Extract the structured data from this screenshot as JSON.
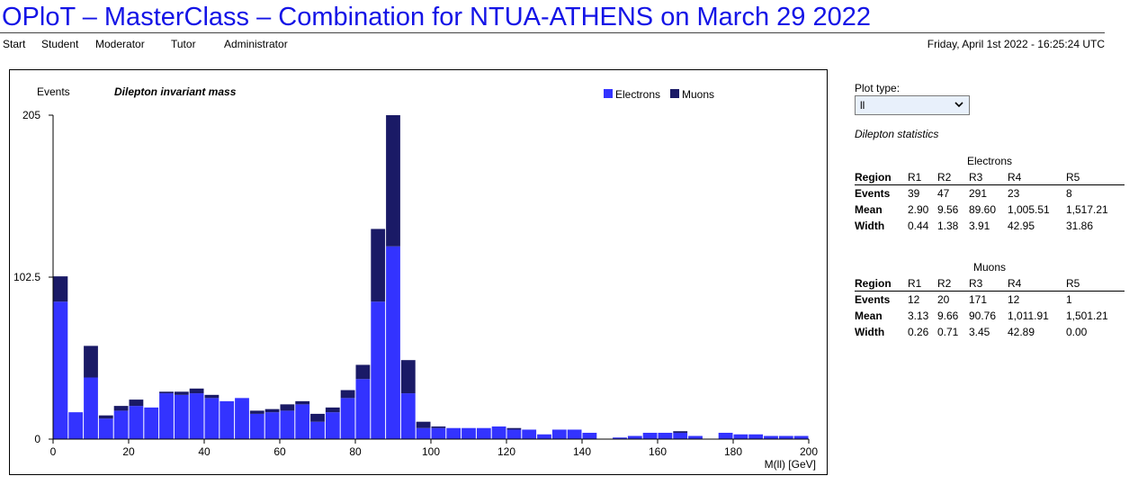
{
  "page_title": "OPloT – MasterClass – Combination for NTUA-ATHENS on March 29 2022",
  "nav": [
    "Start",
    "Student",
    "Moderator",
    "Tutor",
    "Administrator"
  ],
  "timestamp": "Friday, April 1st 2022 - 16:25:24 UTC",
  "plot_type": {
    "label": "Plot type:",
    "selected": "ll"
  },
  "stats_title": "Dilepton statistics",
  "colors": {
    "electrons": "#3333ff",
    "muons": "#1a1a66",
    "title": "#1414e6"
  },
  "electrons_table": {
    "caption": "Electrons",
    "header": [
      "Region",
      "R1",
      "R2",
      "R3",
      "R4",
      "R5"
    ],
    "rows": [
      [
        "Events",
        "39",
        "47",
        "291",
        "23",
        "8"
      ],
      [
        "Mean",
        "2.90",
        "9.56",
        "89.60",
        "1,005.51",
        "1,517.21"
      ],
      [
        "Width",
        "0.44",
        "1.38",
        "3.91",
        "42.95",
        "31.86"
      ]
    ]
  },
  "muons_table": {
    "caption": "Muons",
    "header": [
      "Region",
      "R1",
      "R2",
      "R3",
      "R4",
      "R5"
    ],
    "rows": [
      [
        "Events",
        "12",
        "20",
        "171",
        "12",
        "1"
      ],
      [
        "Mean",
        "3.13",
        "9.66",
        "90.76",
        "1,011.91",
        "1,501.21"
      ],
      [
        "Width",
        "0.26",
        "0.71",
        "3.45",
        "42.89",
        "0.00"
      ]
    ]
  },
  "chart_data": {
    "type": "bar",
    "stacked": true,
    "title": "Dilepton invariant mass",
    "ylabel": "Events",
    "xlabel": "M(ll) [GeV]",
    "xlim": [
      0,
      200
    ],
    "ylim": [
      0,
      205
    ],
    "xticks": [
      "0",
      "20",
      "40",
      "60",
      "80",
      "100",
      "120",
      "140",
      "160",
      "180",
      "200"
    ],
    "yticks": [
      "0",
      "102.5",
      "205"
    ],
    "legend_position": "top-right",
    "bin_width": 4,
    "x": [
      0,
      4,
      8,
      12,
      16,
      20,
      24,
      28,
      32,
      36,
      40,
      44,
      48,
      52,
      56,
      60,
      64,
      68,
      72,
      76,
      80,
      84,
      88,
      92,
      96,
      100,
      104,
      108,
      112,
      116,
      120,
      124,
      128,
      132,
      136,
      140,
      144,
      148,
      152,
      156,
      160,
      164,
      168,
      172,
      176,
      180,
      184,
      188,
      192,
      196
    ],
    "series": [
      {
        "name": "Electrons",
        "values": [
          87,
          17,
          39,
          13,
          18,
          21,
          20,
          29,
          28,
          29,
          26,
          24,
          26,
          16,
          17,
          18,
          22,
          11,
          17,
          26,
          38,
          87,
          122,
          29,
          7,
          7,
          7,
          7,
          7,
          8,
          6,
          6,
          3,
          6,
          6,
          4,
          0,
          1,
          2,
          4,
          4,
          4,
          2,
          0,
          4,
          3,
          3,
          2,
          2,
          2
        ]
      },
      {
        "name": "Muons",
        "values": [
          16,
          0,
          20,
          2,
          3,
          4,
          0,
          1,
          2,
          3,
          2,
          0,
          0,
          2,
          2,
          4,
          2,
          5,
          3,
          5,
          9,
          46,
          83,
          21,
          4,
          1,
          0,
          0,
          0,
          0,
          1,
          0,
          0,
          0,
          0,
          0,
          0,
          0,
          0,
          0,
          0,
          1,
          0,
          0,
          0,
          0,
          0,
          0,
          0,
          0
        ]
      }
    ]
  }
}
